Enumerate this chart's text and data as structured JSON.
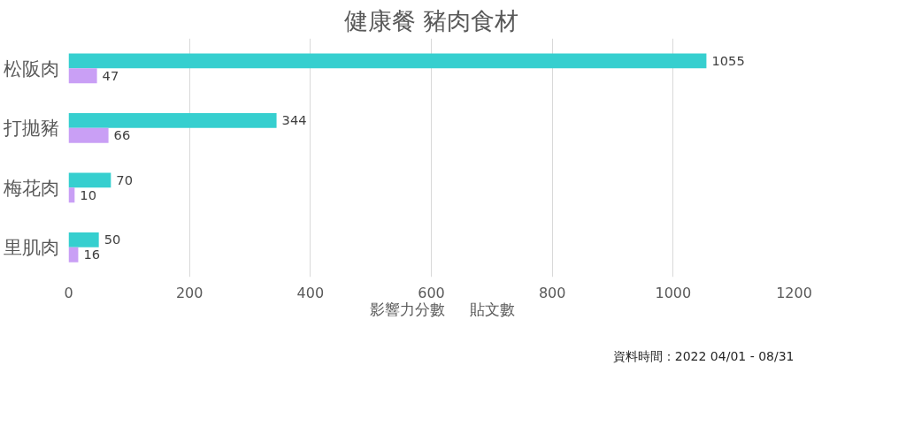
{
  "chart_data": {
    "type": "bar",
    "orientation": "horizontal",
    "title": "健康餐 豬肉食材",
    "categories": [
      "松阪肉",
      "打拋豬",
      "梅花肉",
      "里肌肉"
    ],
    "series": [
      {
        "name": "影響力分數",
        "color": "#36cfcf",
        "values": [
          1055,
          344,
          70,
          50
        ]
      },
      {
        "name": "貼文數",
        "color": "#c99ff5",
        "values": [
          47,
          66,
          10,
          16
        ]
      }
    ],
    "xlim": [
      0,
      1200
    ],
    "xticks": [
      0,
      200,
      400,
      600,
      800,
      1000,
      1200
    ],
    "grid": "x",
    "legend": "bottom",
    "data_labels": true,
    "annotations": [
      "資料時間：2022 04/01 - 08/31"
    ]
  }
}
